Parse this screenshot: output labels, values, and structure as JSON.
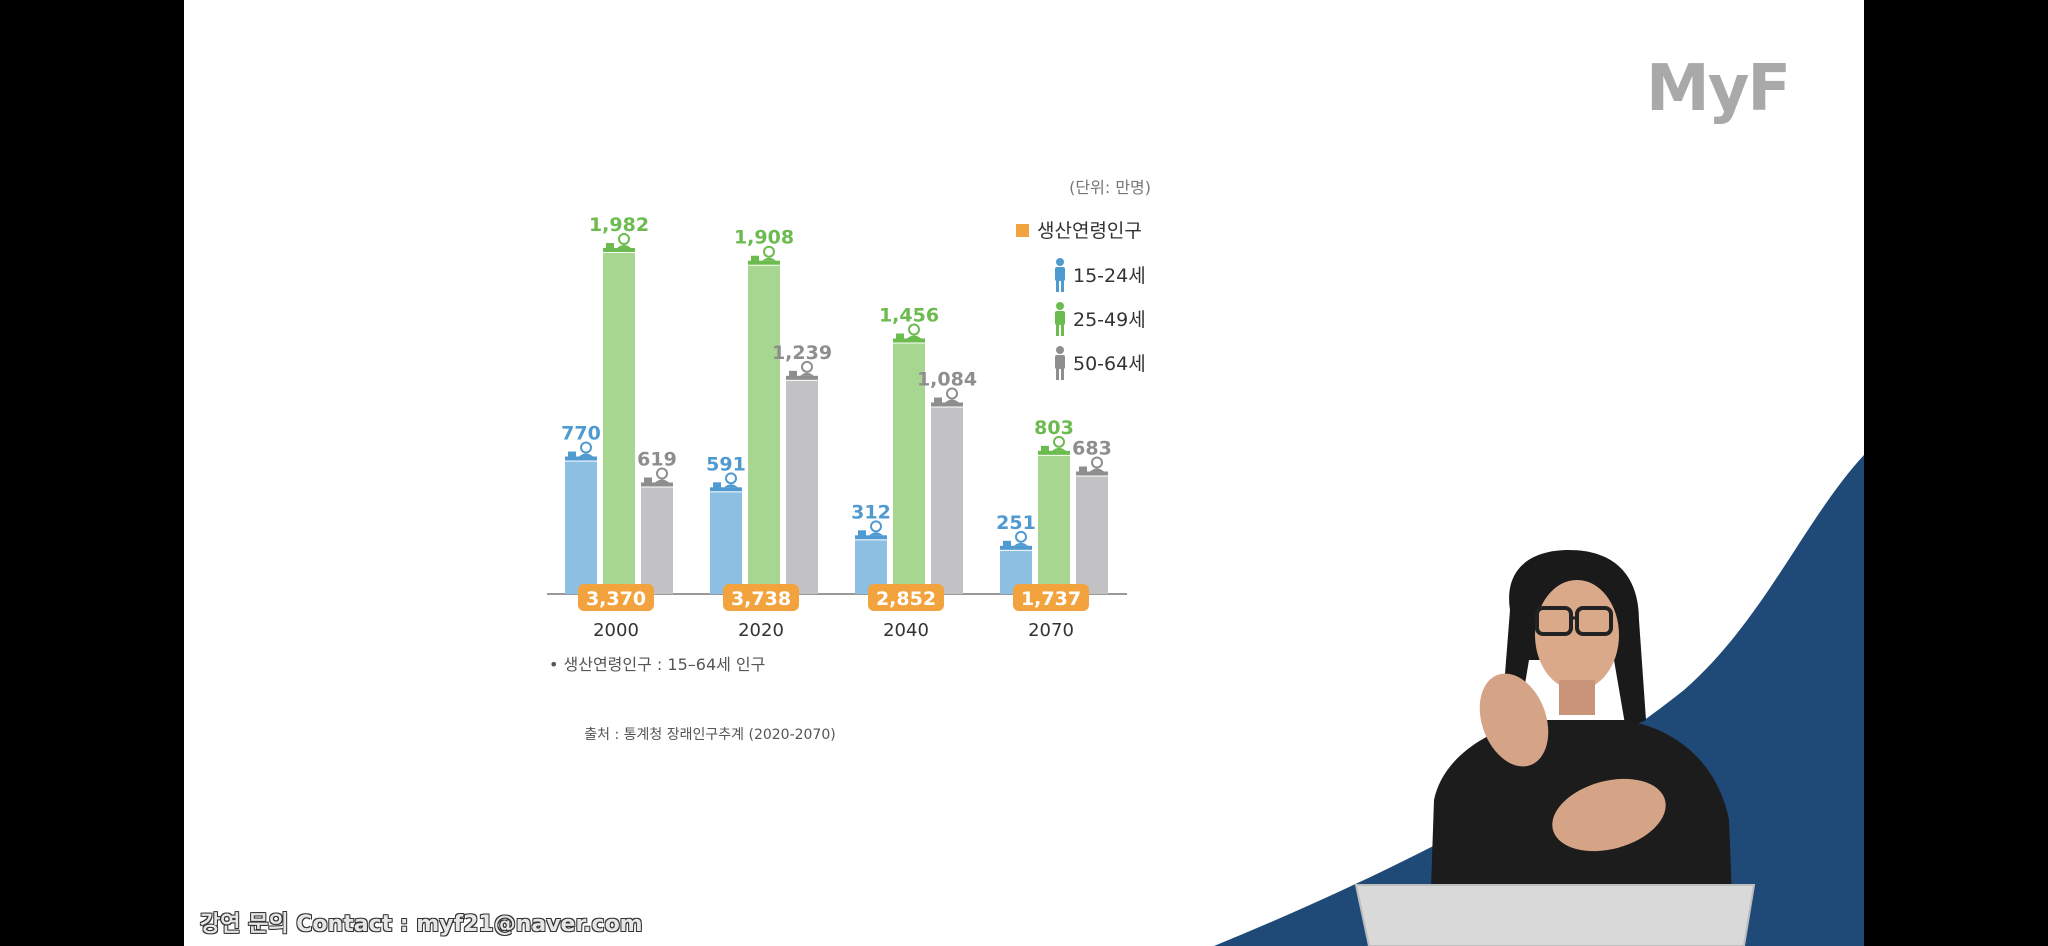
{
  "brand": {
    "logo_text": "MyF"
  },
  "contact": {
    "text": "강연 문의 Contact : myf21@naver.com"
  },
  "colors": {
    "youth": "#8dbfe3",
    "youth_text": "#4f9ad0",
    "core": "#a6d68f",
    "core_text": "#6cbb4f",
    "senior": "#c2c2c4",
    "senior_text": "#8e8e8e",
    "total": "#f3a33d",
    "navy": "#1f4a78"
  },
  "chart_data": {
    "type": "bar",
    "unit_label": "(단위: 만명)",
    "categories": [
      "2000",
      "2020",
      "2040",
      "2070"
    ],
    "series": [
      {
        "name": "15-24세",
        "values": [
          770,
          591,
          312,
          251
        ],
        "icon": "person-icon"
      },
      {
        "name": "25-49세",
        "values": [
          1982,
          1908,
          1456,
          803
        ],
        "icon": "person-icon"
      },
      {
        "name": "50-64세",
        "values": [
          619,
          1239,
          1084,
          683
        ],
        "icon": "person-icon"
      }
    ],
    "total": {
      "name": "생산연령인구",
      "values": [
        3370,
        3738,
        2852,
        1737
      ]
    },
    "value_labels": {
      "15-24세": [
        "770",
        "591",
        "312",
        "251"
      ],
      "25-49세": [
        "1,982",
        "1,908",
        "1,456",
        "803"
      ],
      "50-64세": [
        "619",
        "1,239",
        "1,084",
        "683"
      ],
      "total": [
        "3,370",
        "3,738",
        "2,852",
        "1,737"
      ]
    },
    "footnote": "• 생산연령인구 : 15–64세 인구",
    "source": "출처 : 통계청 장래인구추계 (2020-2070)",
    "ylim": [
      0,
      2000
    ],
    "legend_position": "top-right"
  }
}
